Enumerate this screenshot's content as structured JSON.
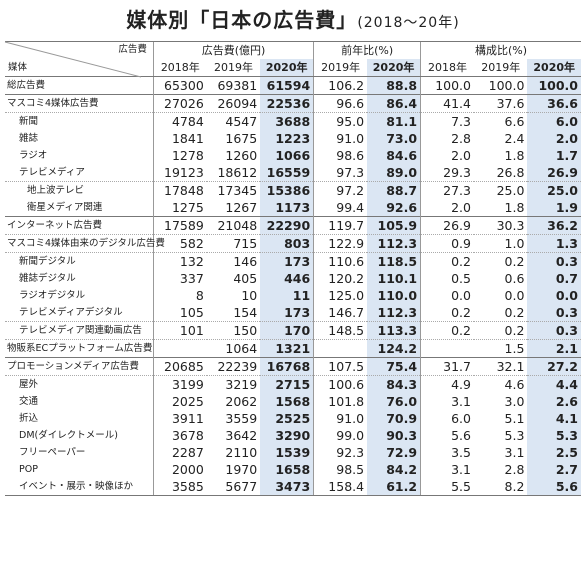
{
  "title": {
    "main": "媒体別「日本の広告費」",
    "sub": "(2018〜20年)"
  },
  "header": {
    "corner_top": "広告費",
    "corner_bottom": "媒体",
    "groups": [
      "広告費(億円)",
      "前年比(%)",
      "構成比(%)"
    ],
    "years": [
      "2018年",
      "2019年",
      "2020年",
      "2019年",
      "2020年",
      "2018年",
      "2019年",
      "2020年"
    ]
  },
  "rows": [
    {
      "label": "総広告費",
      "values": [
        "65300",
        "69381",
        "61594",
        "106.2",
        "88.8",
        "100.0",
        "100.0",
        "100.0"
      ]
    },
    {
      "label": "マスコミ4媒体広告費",
      "values": [
        "27026",
        "26094",
        "22536",
        "96.6",
        "86.4",
        "41.4",
        "37.6",
        "36.6"
      ]
    },
    {
      "label": "新聞",
      "values": [
        "4784",
        "4547",
        "3688",
        "95.0",
        "81.1",
        "7.3",
        "6.6",
        "6.0"
      ]
    },
    {
      "label": "雑誌",
      "values": [
        "1841",
        "1675",
        "1223",
        "91.0",
        "73.0",
        "2.8",
        "2.4",
        "2.0"
      ]
    },
    {
      "label": "ラジオ",
      "values": [
        "1278",
        "1260",
        "1066",
        "98.6",
        "84.6",
        "2.0",
        "1.8",
        "1.7"
      ]
    },
    {
      "label": "テレビメディア",
      "values": [
        "19123",
        "18612",
        "16559",
        "97.3",
        "89.0",
        "29.3",
        "26.8",
        "26.9"
      ]
    },
    {
      "label": "地上波テレビ",
      "values": [
        "17848",
        "17345",
        "15386",
        "97.2",
        "88.7",
        "27.3",
        "25.0",
        "25.0"
      ]
    },
    {
      "label": "衛星メディア関連",
      "values": [
        "1275",
        "1267",
        "1173",
        "99.4",
        "92.6",
        "2.0",
        "1.8",
        "1.9"
      ]
    },
    {
      "label": "インターネット広告費",
      "values": [
        "17589",
        "21048",
        "22290",
        "119.7",
        "105.9",
        "26.9",
        "30.3",
        "36.2"
      ]
    },
    {
      "label": "マスコミ4媒体由来のデジタル広告費",
      "values": [
        "582",
        "715",
        "803",
        "122.9",
        "112.3",
        "0.9",
        "1.0",
        "1.3"
      ]
    },
    {
      "label": "新聞デジタル",
      "values": [
        "132",
        "146",
        "173",
        "110.6",
        "118.5",
        "0.2",
        "0.2",
        "0.3"
      ]
    },
    {
      "label": "雑誌デジタル",
      "values": [
        "337",
        "405",
        "446",
        "120.2",
        "110.1",
        "0.5",
        "0.6",
        "0.7"
      ]
    },
    {
      "label": "ラジオデジタル",
      "values": [
        "8",
        "10",
        "11",
        "125.0",
        "110.0",
        "0.0",
        "0.0",
        "0.0"
      ]
    },
    {
      "label": "テレビメディアデジタル",
      "values": [
        "105",
        "154",
        "173",
        "146.7",
        "112.3",
        "0.2",
        "0.2",
        "0.3"
      ]
    },
    {
      "label": "テレビメディア関連動画広告",
      "values": [
        "101",
        "150",
        "170",
        "148.5",
        "113.3",
        "0.2",
        "0.2",
        "0.3"
      ]
    },
    {
      "label": "物販系ECプラットフォーム広告費",
      "values": [
        "",
        "1064",
        "1321",
        "",
        "124.2",
        "",
        "1.5",
        "2.1"
      ]
    },
    {
      "label": "プロモーションメディア広告費",
      "values": [
        "20685",
        "22239",
        "16768",
        "107.5",
        "75.4",
        "31.7",
        "32.1",
        "27.2"
      ]
    },
    {
      "label": "屋外",
      "values": [
        "3199",
        "3219",
        "2715",
        "100.6",
        "84.3",
        "4.9",
        "4.6",
        "4.4"
      ]
    },
    {
      "label": "交通",
      "values": [
        "2025",
        "2062",
        "1568",
        "101.8",
        "76.0",
        "3.1",
        "3.0",
        "2.6"
      ]
    },
    {
      "label": "折込",
      "values": [
        "3911",
        "3559",
        "2525",
        "91.0",
        "70.9",
        "6.0",
        "5.1",
        "4.1"
      ]
    },
    {
      "label": "DM(ダイレクトメール)",
      "values": [
        "3678",
        "3642",
        "3290",
        "99.0",
        "90.3",
        "5.6",
        "5.3",
        "5.3"
      ]
    },
    {
      "label": "フリーペーパー",
      "values": [
        "2287",
        "2110",
        "1539",
        "92.3",
        "72.9",
        "3.5",
        "3.1",
        "2.5"
      ]
    },
    {
      "label": "POP",
      "values": [
        "2000",
        "1970",
        "1658",
        "98.5",
        "84.2",
        "3.1",
        "2.8",
        "2.7"
      ]
    },
    {
      "label": "イベント・展示・映像ほか",
      "values": [
        "3585",
        "5677",
        "3473",
        "158.4",
        "61.2",
        "5.5",
        "8.2",
        "5.6"
      ]
    }
  ]
}
